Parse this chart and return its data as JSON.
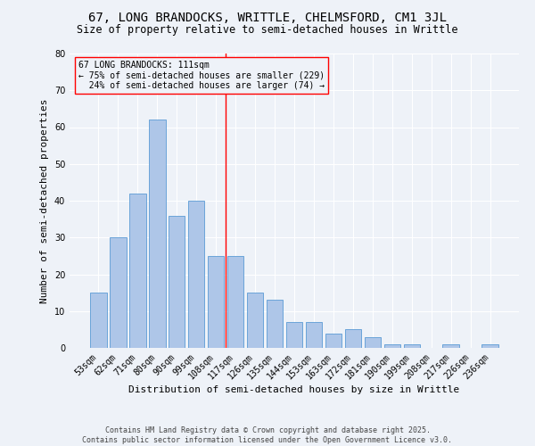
{
  "title": "67, LONG BRANDOCKS, WRITTLE, CHELMSFORD, CM1 3JL",
  "subtitle": "Size of property relative to semi-detached houses in Writtle",
  "xlabel": "Distribution of semi-detached houses by size in Writtle",
  "ylabel": "Number of semi-detached properties",
  "categories": [
    "53sqm",
    "62sqm",
    "71sqm",
    "80sqm",
    "90sqm",
    "99sqm",
    "108sqm",
    "117sqm",
    "126sqm",
    "135sqm",
    "144sqm",
    "153sqm",
    "163sqm",
    "172sqm",
    "181sqm",
    "190sqm",
    "199sqm",
    "208sqm",
    "217sqm",
    "226sqm",
    "236sqm"
  ],
  "values": [
    15,
    30,
    42,
    62,
    36,
    40,
    25,
    25,
    15,
    13,
    7,
    7,
    4,
    5,
    3,
    1,
    1,
    0,
    1,
    0,
    1
  ],
  "bar_color": "#aec6e8",
  "bar_edge_color": "#5b9bd5",
  "annotation_line1": "67 LONG BRANDOCKS: 111sqm",
  "annotation_line2": "← 75% of semi-detached houses are smaller (229)",
  "annotation_line3": "  24% of semi-detached houses are larger (74) →",
  "ylim": [
    0,
    80
  ],
  "yticks": [
    0,
    10,
    20,
    30,
    40,
    50,
    60,
    70,
    80
  ],
  "footer_line1": "Contains HM Land Registry data © Crown copyright and database right 2025.",
  "footer_line2": "Contains public sector information licensed under the Open Government Licence v3.0.",
  "background_color": "#eef2f8",
  "grid_color": "#ffffff",
  "vline_index": 6.5,
  "title_fontsize": 10,
  "subtitle_fontsize": 8.5,
  "label_fontsize": 8,
  "tick_fontsize": 7,
  "annotation_fontsize": 7,
  "footer_fontsize": 6
}
